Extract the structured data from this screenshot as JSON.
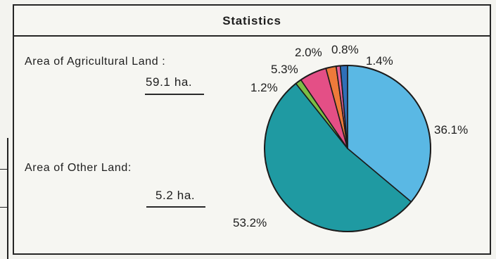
{
  "panel": {
    "title": "Statistics"
  },
  "agricultural": {
    "label": "Area of Agricultural Land :",
    "value": "59.1",
    "unit": "ha."
  },
  "other": {
    "label": "Area of Other Land:",
    "value": "5.2",
    "unit": "ha."
  },
  "chart_data": {
    "type": "pie",
    "title": "Statistics",
    "start_angle_deg": 0,
    "direction": "clockwise",
    "slices": [
      {
        "value": 36.1,
        "label": "36.1%",
        "color": "#5ab8e4"
      },
      {
        "value": 53.2,
        "label": "53.2%",
        "color": "#1f9aa2"
      },
      {
        "value": 1.2,
        "label": "1.2%",
        "color": "#7cbe45"
      },
      {
        "value": 5.3,
        "label": "5.3%",
        "color": "#e44f86"
      },
      {
        "value": 2.0,
        "label": "2.0%",
        "color": "#ee7a3a"
      },
      {
        "value": 0.8,
        "label": "0.8%",
        "color": "#e85f94"
      },
      {
        "value": 1.4,
        "label": "1.4%",
        "color": "#2f6fb8"
      }
    ]
  }
}
